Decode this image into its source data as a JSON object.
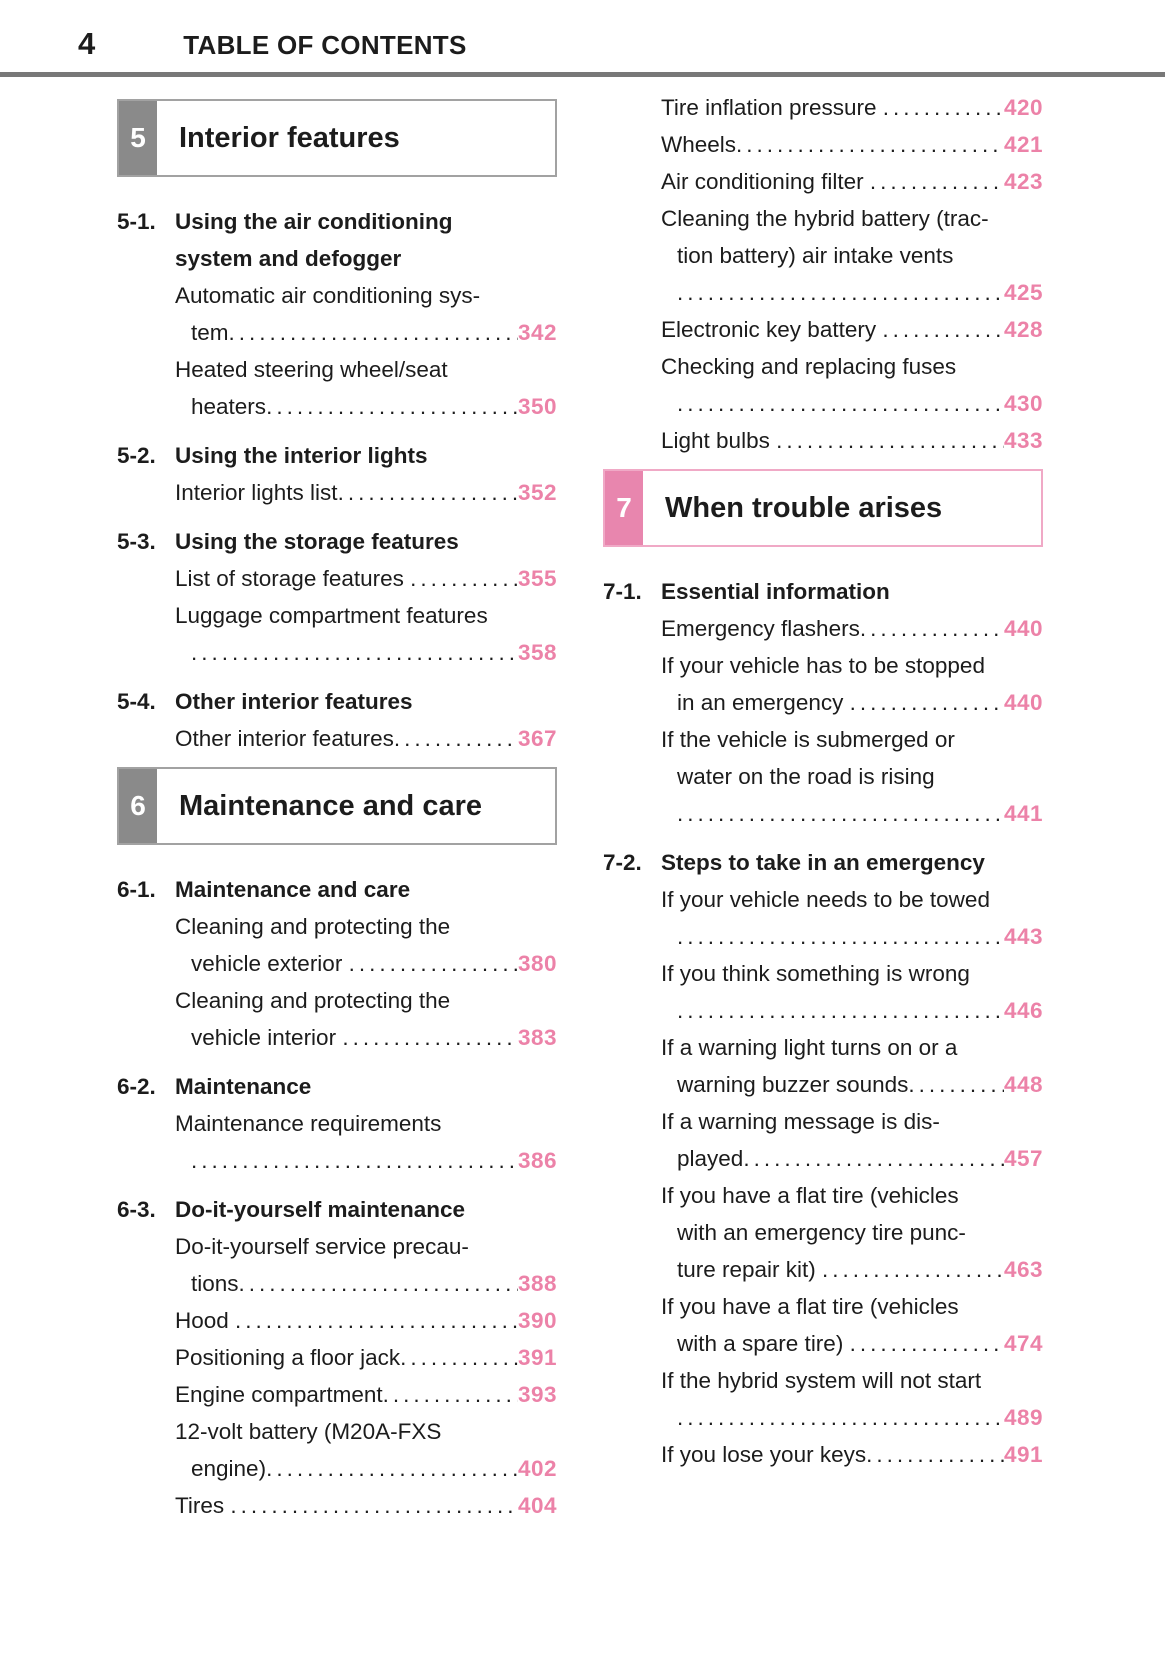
{
  "page": {
    "number": "4",
    "header_title": "TABLE OF CONTENTS"
  },
  "colors": {
    "accent_pink": "#ec82a8",
    "chapter_tab_gray": "#8a8a8a",
    "chapter_border_gray": "#a2a2a2",
    "chapter_tab_pink": "#e886ae",
    "chapter_border_pink": "#f0a9c6",
    "header_rule_gray": "#787878",
    "text_black": "#1c1c1c"
  },
  "columns": [
    {
      "blocks": [
        {
          "type": "chapter",
          "number": "5",
          "title": "Interior features",
          "theme": "gray"
        },
        {
          "type": "section",
          "label": "5-1.",
          "title_lines": [
            "Using the air conditioning",
            "system and defogger"
          ],
          "entries": [
            {
              "lines": [
                "Automatic air conditioning sys-",
                "tem"
              ],
              "page": "342"
            },
            {
              "lines": [
                "Heated steering wheel/seat",
                "heaters"
              ],
              "page": "350"
            }
          ]
        },
        {
          "type": "section",
          "label": "5-2.",
          "title_lines": [
            "Using the interior lights"
          ],
          "entries": [
            {
              "lines": [
                "Interior lights list"
              ],
              "page": "352"
            }
          ]
        },
        {
          "type": "section",
          "label": "5-3.",
          "title_lines": [
            "Using the storage features"
          ],
          "entries": [
            {
              "lines": [
                "List of storage features "
              ],
              "page": "355"
            },
            {
              "lines": [
                "Luggage compartment features",
                ""
              ],
              "page": "358"
            }
          ]
        },
        {
          "type": "section",
          "label": "5-4.",
          "title_lines": [
            "Other interior features"
          ],
          "entries": [
            {
              "lines": [
                "Other interior features"
              ],
              "page": "367"
            }
          ]
        },
        {
          "type": "chapter",
          "number": "6",
          "title": "Maintenance and care",
          "theme": "gray"
        },
        {
          "type": "section",
          "label": "6-1.",
          "title_lines": [
            "Maintenance and care"
          ],
          "entries": [
            {
              "lines": [
                "Cleaning and protecting the",
                "vehicle exterior "
              ],
              "page": "380"
            },
            {
              "lines": [
                "Cleaning and protecting the",
                "vehicle interior "
              ],
              "page": "383"
            }
          ]
        },
        {
          "type": "section",
          "label": "6-2.",
          "title_lines": [
            "Maintenance"
          ],
          "entries": [
            {
              "lines": [
                "Maintenance requirements",
                ""
              ],
              "page": "386"
            }
          ]
        },
        {
          "type": "section",
          "label": "6-3.",
          "title_lines": [
            "Do-it-yourself maintenance"
          ],
          "entries": [
            {
              "lines": [
                "Do-it-yourself service precau-",
                "tions"
              ],
              "page": "388"
            },
            {
              "lines": [
                "Hood "
              ],
              "page": "390"
            },
            {
              "lines": [
                "Positioning a floor jack"
              ],
              "page": "391"
            },
            {
              "lines": [
                "Engine compartment"
              ],
              "page": "393"
            },
            {
              "lines": [
                "12-volt battery (M20A-FXS",
                "engine)"
              ],
              "page": "402"
            },
            {
              "lines": [
                "Tires "
              ],
              "page": "404"
            }
          ]
        }
      ]
    },
    {
      "blocks": [
        {
          "type": "entries",
          "entries": [
            {
              "lines": [
                "Tire inflation pressure "
              ],
              "page": "420"
            },
            {
              "lines": [
                "Wheels"
              ],
              "page": "421"
            },
            {
              "lines": [
                "Air conditioning filter "
              ],
              "page": "423"
            },
            {
              "lines": [
                "Cleaning the hybrid battery (trac-",
                "tion battery) air intake vents",
                ""
              ],
              "page": "425"
            },
            {
              "lines": [
                "Electronic key battery "
              ],
              "page": "428"
            },
            {
              "lines": [
                "Checking and replacing fuses",
                ""
              ],
              "page": "430"
            },
            {
              "lines": [
                "Light bulbs "
              ],
              "page": "433"
            }
          ]
        },
        {
          "type": "chapter",
          "number": "7",
          "title": "When trouble arises",
          "theme": "pink"
        },
        {
          "type": "section",
          "label": "7-1.",
          "title_lines": [
            "Essential information"
          ],
          "entries": [
            {
              "lines": [
                "Emergency flashers"
              ],
              "page": "440"
            },
            {
              "lines": [
                "If your vehicle has to be stopped",
                "in an emergency "
              ],
              "page": "440"
            },
            {
              "lines": [
                "If the vehicle is submerged or",
                "water on the road is rising",
                ""
              ],
              "page": "441"
            }
          ]
        },
        {
          "type": "section",
          "label": "7-2.",
          "title_lines": [
            "Steps to take in an emergency"
          ],
          "entries": [
            {
              "lines": [
                "If your vehicle needs to be towed",
                ""
              ],
              "page": "443"
            },
            {
              "lines": [
                "If you think something is wrong",
                ""
              ],
              "page": "446"
            },
            {
              "lines": [
                "If a warning light turns on or a",
                "warning buzzer sounds"
              ],
              "page": "448"
            },
            {
              "lines": [
                "If a warning message is dis-",
                "played"
              ],
              "page": "457"
            },
            {
              "lines": [
                "If you have a flat tire (vehicles",
                "with an emergency tire punc-",
                "ture repair kit) "
              ],
              "page": "463"
            },
            {
              "lines": [
                "If you have a flat tire (vehicles",
                "with a spare tire) "
              ],
              "page": "474"
            },
            {
              "lines": [
                "If the hybrid system will not start",
                ""
              ],
              "page": "489"
            },
            {
              "lines": [
                "If you lose your keys"
              ],
              "page": "491"
            }
          ]
        }
      ]
    }
  ]
}
